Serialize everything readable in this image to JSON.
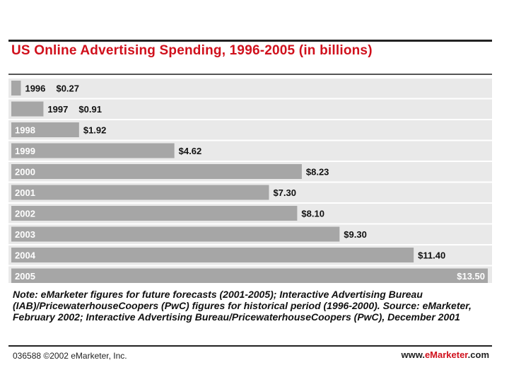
{
  "chart_data": {
    "type": "bar",
    "orientation": "horizontal",
    "title": "US Online Advertising Spending, 1996-2005 (in billions)",
    "categories": [
      "1996",
      "1997",
      "1998",
      "1999",
      "2000",
      "2001",
      "2002",
      "2003",
      "2004",
      "2005"
    ],
    "values": [
      0.27,
      0.91,
      1.92,
      4.62,
      8.23,
      7.3,
      8.1,
      9.3,
      11.4,
      13.5
    ],
    "value_labels": [
      "$0.27",
      "$0.91",
      "$1.92",
      "$4.62",
      "$8.23",
      "$7.30",
      "$8.10",
      "$9.30",
      "$11.40",
      "$13.50"
    ],
    "xlim": [
      0,
      13.5
    ],
    "xlabel": "",
    "ylabel": "",
    "colors": {
      "bar": "#a6a6a6",
      "title": "#d0101c",
      "row_band": "#e9e9e9"
    }
  },
  "note": "Note: eMarketer figures for future forecasts (2001-2005); Interactive Advertising Bureau (IAB)/PricewaterhouseCoopers (PwC) figures for historical period (1996-2000). Source: eMarketer, February 2002; Interactive Advertising Bureau/PricewaterhouseCoopers (PwC), December 2001",
  "footer": {
    "left": "036588 ©2002 eMarketer, Inc.",
    "right_prefix": "www.",
    "right_brand": "eMarketer",
    "right_suffix": ".com"
  }
}
